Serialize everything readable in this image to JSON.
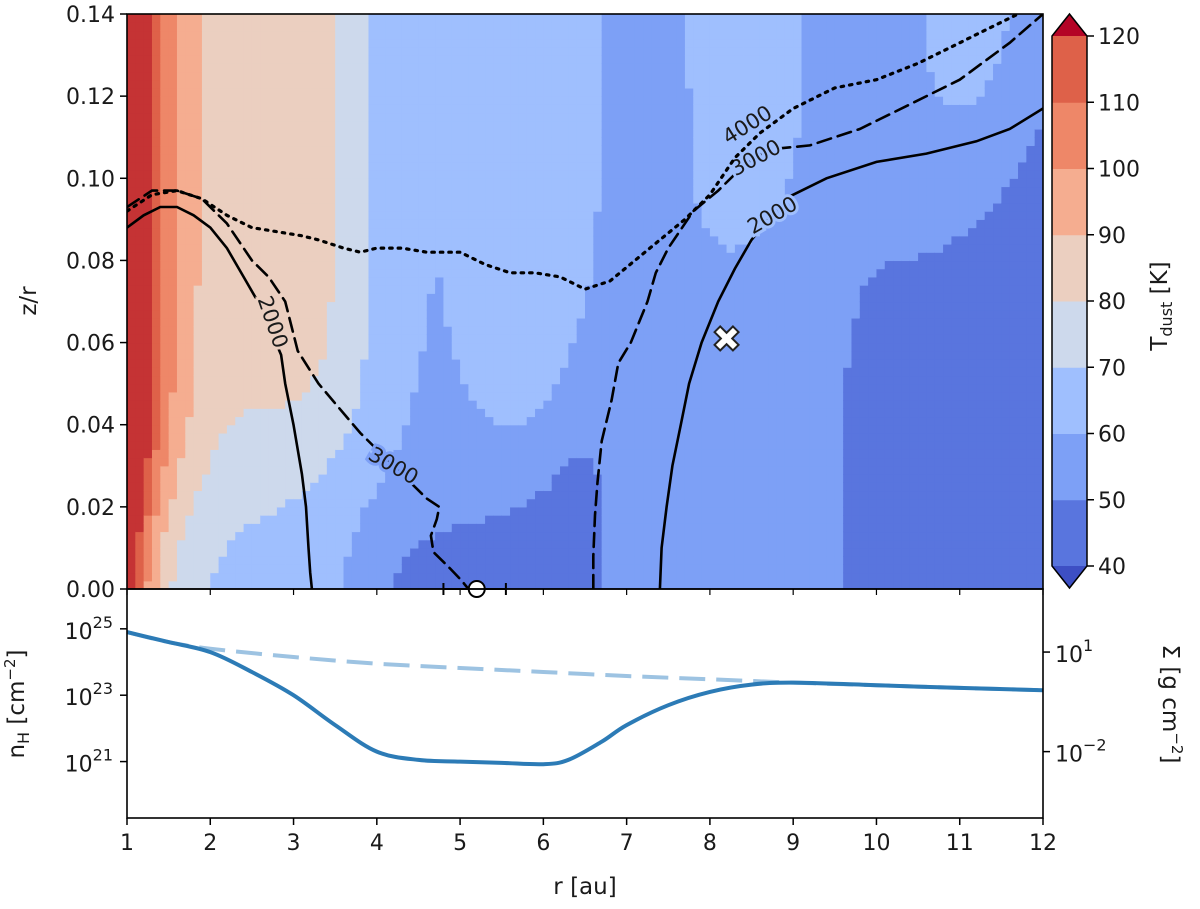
{
  "chart_data": [
    {
      "type": "contourf",
      "name": "dust temperature map",
      "xlim": [
        1,
        12
      ],
      "ylim": [
        0.0,
        0.14
      ],
      "ylabel": "z/r",
      "yticks": [
        "0.00",
        "0.02",
        "0.04",
        "0.06",
        "0.08",
        "0.10",
        "0.12",
        "0.14"
      ],
      "colorbar": {
        "label_main": "T",
        "label_sub": "dust",
        "label_unit": " [K]",
        "levels": [
          40,
          50,
          60,
          70,
          80,
          90,
          100,
          110,
          120
        ],
        "ticks": [
          "40",
          "50",
          "60",
          "70",
          "80",
          "90",
          "100",
          "110",
          "120"
        ],
        "extend": "both",
        "colors": [
          "#3d4fc4",
          "#5975de",
          "#7da0f6",
          "#9fbffe",
          "#cdd9ec",
          "#ebcfc0",
          "#f5ad90",
          "#ee8768",
          "#de6149",
          "#c53334",
          "#b40426"
        ]
      },
      "contours": [
        {
          "level": "2000",
          "style": "solid",
          "points": [
            [
              1.0,
              0.088
            ],
            [
              1.2,
              0.091
            ],
            [
              1.4,
              0.093
            ],
            [
              1.6,
              0.093
            ],
            [
              1.8,
              0.091
            ],
            [
              2.0,
              0.088
            ],
            [
              2.2,
              0.083
            ],
            [
              2.4,
              0.076
            ],
            [
              2.6,
              0.069
            ],
            [
              2.85,
              0.057
            ],
            [
              2.9,
              0.05
            ],
            [
              3.0,
              0.04
            ],
            [
              3.1,
              0.028
            ],
            [
              3.15,
              0.02
            ],
            [
              3.18,
              0.01
            ],
            [
              3.2,
              0.004
            ],
            [
              3.22,
              0.0
            ]
          ],
          "label_at": [
            2.75,
            0.065
          ],
          "label_rot": 71
        },
        {
          "level": "2000",
          "style": "solid",
          "points": [
            [
              7.4,
              0.0
            ],
            [
              7.42,
              0.01
            ],
            [
              7.48,
              0.02
            ],
            [
              7.55,
              0.03
            ],
            [
              7.65,
              0.04
            ],
            [
              7.75,
              0.05
            ],
            [
              7.9,
              0.06
            ],
            [
              8.1,
              0.07
            ],
            [
              8.3,
              0.078
            ],
            [
              8.5,
              0.085
            ],
            [
              8.9,
              0.095
            ],
            [
              9.4,
              0.1
            ],
            [
              10.0,
              0.104
            ],
            [
              10.6,
              0.106
            ],
            [
              11.2,
              0.109
            ],
            [
              11.6,
              0.112
            ],
            [
              12.0,
              0.117
            ]
          ],
          "label_at": [
            8.75,
            0.091
          ],
          "label_rot": -30
        },
        {
          "level": "3000",
          "style": "dashed",
          "points": [
            [
              1.0,
              0.093
            ],
            [
              1.3,
              0.097
            ],
            [
              1.6,
              0.097
            ],
            [
              1.9,
              0.095
            ],
            [
              2.2,
              0.089
            ],
            [
              2.5,
              0.08
            ],
            [
              2.7,
              0.076
            ],
            [
              2.9,
              0.07
            ],
            [
              3.05,
              0.058
            ],
            [
              3.3,
              0.05
            ],
            [
              3.55,
              0.044
            ],
            [
              3.8,
              0.038
            ],
            [
              4.1,
              0.032
            ],
            [
              4.3,
              0.028
            ],
            [
              4.6,
              0.022
            ],
            [
              4.75,
              0.02
            ],
            [
              4.72,
              0.017
            ],
            [
              4.65,
              0.013
            ],
            [
              4.68,
              0.009
            ],
            [
              4.88,
              0.005
            ],
            [
              5.02,
              0.002
            ],
            [
              5.1,
              0.0
            ]
          ],
          "label_at": [
            4.2,
            0.03
          ],
          "label_rot": 30
        },
        {
          "level": "3000",
          "style": "dashed",
          "points": [
            [
              6.6,
              0.0
            ],
            [
              6.6,
              0.008
            ],
            [
              6.62,
              0.018
            ],
            [
              6.65,
              0.026
            ],
            [
              6.7,
              0.036
            ],
            [
              6.82,
              0.046
            ],
            [
              6.9,
              0.055
            ],
            [
              7.05,
              0.06
            ],
            [
              7.25,
              0.07
            ],
            [
              7.35,
              0.077
            ],
            [
              7.5,
              0.083
            ],
            [
              7.8,
              0.092
            ],
            [
              8.1,
              0.097
            ],
            [
              8.4,
              0.103
            ],
            [
              8.7,
              0.107
            ],
            [
              9.2,
              0.108
            ],
            [
              9.8,
              0.112
            ],
            [
              10.4,
              0.118
            ],
            [
              11.0,
              0.124
            ],
            [
              11.6,
              0.133
            ],
            [
              12.0,
              0.14
            ]
          ],
          "label_at": [
            8.55,
            0.105
          ],
          "label_rot": -28
        },
        {
          "level": "4000",
          "style": "dotted",
          "points": [
            [
              1.0,
              0.092
            ],
            [
              1.3,
              0.096
            ],
            [
              1.6,
              0.097
            ],
            [
              1.9,
              0.095
            ],
            [
              2.2,
              0.091
            ],
            [
              2.5,
              0.088
            ],
            [
              2.8,
              0.087
            ],
            [
              3.1,
              0.086
            ],
            [
              3.3,
              0.085
            ],
            [
              3.6,
              0.083
            ],
            [
              3.8,
              0.082
            ],
            [
              4.0,
              0.083
            ],
            [
              4.3,
              0.083
            ],
            [
              4.6,
              0.082
            ],
            [
              5.0,
              0.082
            ],
            [
              5.3,
              0.079
            ],
            [
              5.6,
              0.077
            ],
            [
              5.9,
              0.077
            ],
            [
              6.2,
              0.076
            ],
            [
              6.5,
              0.073
            ],
            [
              6.8,
              0.075
            ],
            [
              7.1,
              0.08
            ],
            [
              7.4,
              0.085
            ],
            [
              7.7,
              0.09
            ],
            [
              8.0,
              0.096
            ],
            [
              8.3,
              0.105
            ],
            [
              8.6,
              0.111
            ],
            [
              9.0,
              0.117
            ],
            [
              9.5,
              0.122
            ],
            [
              10.0,
              0.124
            ],
            [
              10.5,
              0.128
            ],
            [
              11.0,
              0.133
            ],
            [
              11.4,
              0.137
            ],
            [
              11.7,
              0.14
            ]
          ],
          "label_at": [
            8.45,
            0.113
          ],
          "label_rot": -32
        }
      ],
      "markers": [
        {
          "name": "planet",
          "x": 5.2,
          "y": 0.0,
          "shape": "circle",
          "xerr": [
            4.8,
            5.55
          ]
        },
        {
          "name": "cross",
          "x": 8.2,
          "y": 0.061,
          "shape": "x"
        }
      ]
    },
    {
      "type": "line",
      "name": "column density profile",
      "xlabel": "r [au]",
      "xlim": [
        1,
        12
      ],
      "xticks": [
        "1",
        "2",
        "3",
        "4",
        "5",
        "6",
        "7",
        "8",
        "9",
        "10",
        "11",
        "12"
      ],
      "ylabel_main": "n",
      "ylabel_sub": "H",
      "ylabel_unit": " [cm",
      "ylabel_exp": "−2",
      "ylabel_close": "]",
      "yscale": "log",
      "ylim_log10": [
        19.3,
        26.2
      ],
      "yticks": [
        {
          "base": "10",
          "exp": "21",
          "log10": 21
        },
        {
          "base": "10",
          "exp": "23",
          "log10": 23
        },
        {
          "base": "10",
          "exp": "25",
          "log10": 25
        }
      ],
      "secondary_ylabel_main": "Σ [g cm",
      "secondary_ylabel_exp": "−2",
      "secondary_ylabel_close": "]",
      "secondary_yticks": [
        {
          "base": "10",
          "exp": "−2",
          "log10": 21.3
        },
        {
          "base": "10",
          "exp": "1",
          "log10": 24.3
        }
      ],
      "series": [
        {
          "name": "unperturbed",
          "style": "dashed",
          "color": "#9dc3e2",
          "x": [
            1.0,
            1.5,
            2.0,
            3.0,
            4.0,
            5.0,
            6.0,
            7.0,
            8.0,
            9.0,
            10.0,
            11.0,
            12.0
          ],
          "log10_values": [
            24.9,
            24.6,
            24.4,
            24.15,
            23.95,
            23.82,
            23.7,
            23.58,
            23.48,
            23.38,
            23.3,
            23.22,
            23.15
          ]
        },
        {
          "name": "gap",
          "style": "solid",
          "color": "#2c7bb6",
          "x": [
            1.0,
            1.5,
            2.0,
            2.5,
            3.0,
            3.5,
            4.0,
            4.5,
            5.0,
            5.5,
            6.0,
            6.3,
            6.7,
            7.0,
            7.5,
            8.0,
            8.5,
            9.0,
            10.0,
            11.0,
            12.0
          ],
          "log10_values": [
            24.9,
            24.6,
            24.3,
            23.7,
            23.0,
            22.1,
            21.3,
            21.05,
            21.0,
            20.96,
            20.92,
            21.05,
            21.6,
            22.1,
            22.7,
            23.1,
            23.32,
            23.38,
            23.3,
            23.22,
            23.15
          ]
        }
      ]
    }
  ]
}
